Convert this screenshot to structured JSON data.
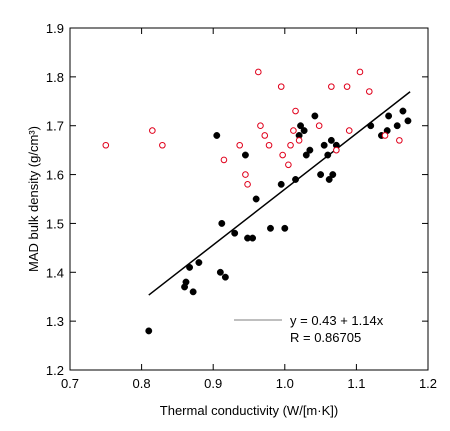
{
  "chart_data": {
    "type": "scatter",
    "xlabel": "Thermal conductivity (W/[m·K])",
    "ylabel": "MAD bulk density (g/cm³)",
    "xlim": [
      0.7,
      1.2
    ],
    "ylim": [
      1.2,
      1.9
    ],
    "xticks": [
      "0.7",
      "0.8",
      "0.9",
      "1.0",
      "1.1",
      "1.2"
    ],
    "yticks": [
      "1.2",
      "1.3",
      "1.4",
      "1.5",
      "1.6",
      "1.7",
      "1.8",
      "1.9"
    ],
    "grid": false,
    "colors": {
      "filled": "#000000",
      "open": "#e0001b",
      "fit": "#000000",
      "legend_line": "#aaaaaa"
    },
    "series": [
      {
        "marker": "filled-circle",
        "points": [
          [
            0.81,
            1.28
          ],
          [
            0.86,
            1.37
          ],
          [
            0.862,
            1.38
          ],
          [
            0.867,
            1.41
          ],
          [
            0.872,
            1.36
          ],
          [
            0.88,
            1.42
          ],
          [
            0.905,
            1.68
          ],
          [
            0.91,
            1.4
          ],
          [
            0.912,
            1.5
          ],
          [
            0.917,
            1.39
          ],
          [
            0.93,
            1.48
          ],
          [
            0.945,
            1.64
          ],
          [
            0.948,
            1.47
          ],
          [
            0.955,
            1.47
          ],
          [
            0.96,
            1.55
          ],
          [
            0.98,
            1.49
          ],
          [
            0.995,
            1.58
          ],
          [
            1.0,
            1.49
          ],
          [
            1.015,
            1.59
          ],
          [
            1.02,
            1.68
          ],
          [
            1.022,
            1.7
          ],
          [
            1.027,
            1.69
          ],
          [
            1.03,
            1.64
          ],
          [
            1.035,
            1.65
          ],
          [
            1.042,
            1.72
          ],
          [
            1.05,
            1.6
          ],
          [
            1.055,
            1.66
          ],
          [
            1.06,
            1.64
          ],
          [
            1.062,
            1.59
          ],
          [
            1.065,
            1.67
          ],
          [
            1.067,
            1.6
          ],
          [
            1.072,
            1.66
          ],
          [
            1.12,
            1.7
          ],
          [
            1.135,
            1.68
          ],
          [
            1.143,
            1.69
          ],
          [
            1.145,
            1.72
          ],
          [
            1.157,
            1.7
          ],
          [
            1.165,
            1.73
          ],
          [
            1.172,
            1.71
          ]
        ]
      },
      {
        "marker": "open-circle",
        "points": [
          [
            0.75,
            1.66
          ],
          [
            0.815,
            1.69
          ],
          [
            0.829,
            1.66
          ],
          [
            0.915,
            1.63
          ],
          [
            0.937,
            1.66
          ],
          [
            0.945,
            1.6
          ],
          [
            0.948,
            1.58
          ],
          [
            0.963,
            1.81
          ],
          [
            0.966,
            1.7
          ],
          [
            0.972,
            1.68
          ],
          [
            0.978,
            1.66
          ],
          [
            0.995,
            1.78
          ],
          [
            0.997,
            1.64
          ],
          [
            1.005,
            1.62
          ],
          [
            1.008,
            1.66
          ],
          [
            1.012,
            1.69
          ],
          [
            1.015,
            1.73
          ],
          [
            1.02,
            1.67
          ],
          [
            1.048,
            1.7
          ],
          [
            1.065,
            1.78
          ],
          [
            1.072,
            1.65
          ],
          [
            1.087,
            1.78
          ],
          [
            1.09,
            1.69
          ],
          [
            1.105,
            1.81
          ],
          [
            1.118,
            1.77
          ],
          [
            1.14,
            1.68
          ],
          [
            1.16,
            1.67
          ]
        ]
      }
    ],
    "fit": {
      "intercept": 0.43,
      "slope": 1.14,
      "x_range": [
        0.81,
        1.175
      ]
    },
    "annotations": {
      "equation": "y = 0.43 + 1.14x",
      "r": "R = 0.86705"
    }
  }
}
